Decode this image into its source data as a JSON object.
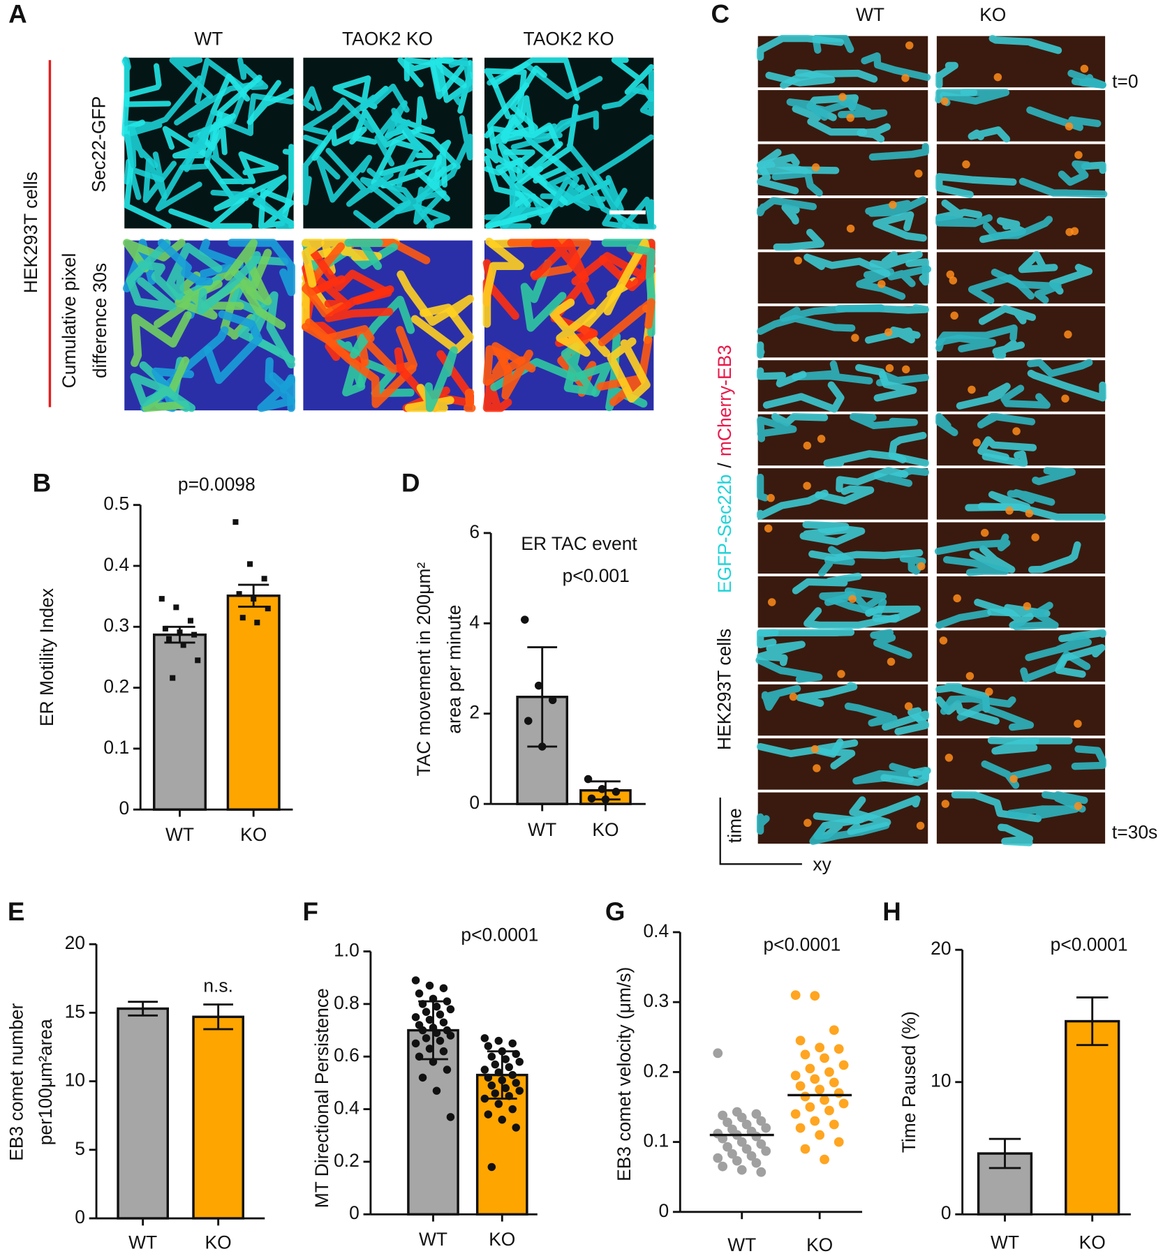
{
  "figure": {
    "A": {
      "panel": "A",
      "columns": [
        "WT",
        "TAOK2 KO",
        "TAOK2 KO"
      ],
      "row_top": "Sec22-GFP",
      "row_bottom": [
        "Cumulative pixel",
        "difference 30s"
      ],
      "cell_line": "HEK293T cells"
    },
    "C": {
      "panel": "C",
      "columns": [
        "WT",
        "KO"
      ],
      "start": "t=0",
      "end": "t=30s",
      "channels": [
        "EGFP-Sec22b",
        "/",
        "mCherry-EB3"
      ],
      "cell_line": "HEK293T cells",
      "time_axis": "time",
      "space_axis": "xy"
    }
  },
  "chart_data": [
    {
      "type": "bar",
      "panel": "B",
      "annotation": "p=0.0098",
      "ylabel": [
        "ER Motility Index"
      ],
      "categories": [
        "WT",
        "KO"
      ],
      "values": [
        0.287,
        0.351
      ],
      "errors": [
        0.013,
        0.018
      ],
      "colors": [
        "#a6a6a6",
        "#ffa500"
      ],
      "points": [
        [
          0.346,
          0.332,
          0.31,
          0.297,
          0.291,
          0.287,
          0.28,
          0.27,
          0.245,
          0.216
        ],
        [
          0.472,
          0.403,
          0.379,
          0.354,
          0.346,
          0.33,
          0.315,
          0.307
        ]
      ],
      "ylim": [
        0,
        0.5
      ],
      "yticks": [
        0,
        0.1,
        0.2,
        0.3,
        0.4,
        0.5
      ]
    },
    {
      "type": "bar",
      "panel": "D",
      "title": "ER TAC event",
      "annotation": "p<0.001",
      "ylabel": [
        "TAC movement in 200μm²",
        "area per minute"
      ],
      "categories": [
        "WT",
        "KO"
      ],
      "values": [
        2.37,
        0.3
      ],
      "errors": [
        1.1,
        0.2
      ],
      "colors": [
        "#a6a6a6",
        "#ffa500"
      ],
      "points": [
        [
          4.08,
          2.62,
          2.3,
          1.84,
          1.27
        ],
        [
          0.55,
          0.33,
          0.27,
          0.12,
          0.1
        ]
      ],
      "ylim": [
        0,
        6
      ],
      "yticks": [
        0,
        2,
        4,
        6
      ]
    },
    {
      "type": "bar",
      "panel": "E",
      "annotation": "n.s.",
      "ylabel": [
        "EB3 comet number",
        "per100μm²area"
      ],
      "categories": [
        "WT",
        "KO"
      ],
      "values": [
        15.3,
        14.7
      ],
      "errors": [
        0.5,
        0.9
      ],
      "colors": [
        "#a6a6a6",
        "#ffa500"
      ],
      "ylim": [
        0,
        20
      ],
      "yticks": [
        0,
        5,
        10,
        15,
        20
      ]
    },
    {
      "type": "bar",
      "panel": "F",
      "annotation": "p<0.0001",
      "ylabel": [
        "MT Directional Persistence"
      ],
      "categories": [
        "WT",
        "KO"
      ],
      "values": [
        0.7,
        0.53
      ],
      "errors": [
        0.11,
        0.09
      ],
      "colors": [
        "#a6a6a6",
        "#ffa500"
      ],
      "points": [
        [
          0.89,
          0.87,
          0.86,
          0.84,
          0.82,
          0.81,
          0.8,
          0.79,
          0.78,
          0.77,
          0.76,
          0.75,
          0.74,
          0.73,
          0.72,
          0.71,
          0.7,
          0.7,
          0.69,
          0.68,
          0.67,
          0.66,
          0.65,
          0.63,
          0.62,
          0.6,
          0.58,
          0.55,
          0.52,
          0.47,
          0.37
        ],
        [
          0.67,
          0.66,
          0.65,
          0.64,
          0.62,
          0.61,
          0.6,
          0.59,
          0.58,
          0.57,
          0.56,
          0.55,
          0.54,
          0.53,
          0.52,
          0.51,
          0.5,
          0.49,
          0.48,
          0.47,
          0.46,
          0.45,
          0.44,
          0.42,
          0.4,
          0.38,
          0.36,
          0.33,
          0.18
        ]
      ],
      "ylim": [
        0,
        1
      ],
      "yticks": [
        0,
        0.2,
        0.4,
        0.6,
        0.8,
        {
          "value": 1,
          "label": "1.0"
        }
      ]
    },
    {
      "type": "dot",
      "panel": "G",
      "annotation": "p<0.0001",
      "ylabel": [
        "EB3 comet velocity (μm/s)"
      ],
      "categories": [
        "WT",
        "KO"
      ],
      "values": [
        0.11,
        0.167
      ],
      "colors": [
        "#a0a0a0",
        "#ffa520"
      ],
      "points": [
        [
          0.227,
          0.143,
          0.14,
          0.138,
          0.135,
          0.13,
          0.128,
          0.125,
          0.12,
          0.118,
          0.115,
          0.112,
          0.11,
          0.108,
          0.105,
          0.1,
          0.097,
          0.093,
          0.09,
          0.087,
          0.083,
          0.08,
          0.077,
          0.073,
          0.07,
          0.065,
          0.06,
          0.057
        ],
        [
          0.31,
          0.309,
          0.26,
          0.245,
          0.235,
          0.233,
          0.225,
          0.22,
          0.21,
          0.205,
          0.2,
          0.195,
          0.19,
          0.185,
          0.18,
          0.175,
          0.17,
          0.165,
          0.16,
          0.155,
          0.15,
          0.145,
          0.14,
          0.13,
          0.125,
          0.12,
          0.11,
          0.1,
          0.09,
          0.075
        ]
      ],
      "ylim": [
        0,
        0.4
      ],
      "yticks": [
        0,
        0.1,
        0.2,
        0.3,
        0.4
      ]
    },
    {
      "type": "bar",
      "panel": "H",
      "annotation": "p<0.0001",
      "ylabel": [
        "Time Paused (%)"
      ],
      "categories": [
        "WT",
        "KO"
      ],
      "values": [
        4.6,
        14.6
      ],
      "errors": [
        1.1,
        1.8
      ],
      "colors": [
        "#a6a6a6",
        "#ffa500"
      ],
      "ylim": [
        0,
        20
      ],
      "yticks": [
        0,
        10,
        20
      ]
    }
  ]
}
